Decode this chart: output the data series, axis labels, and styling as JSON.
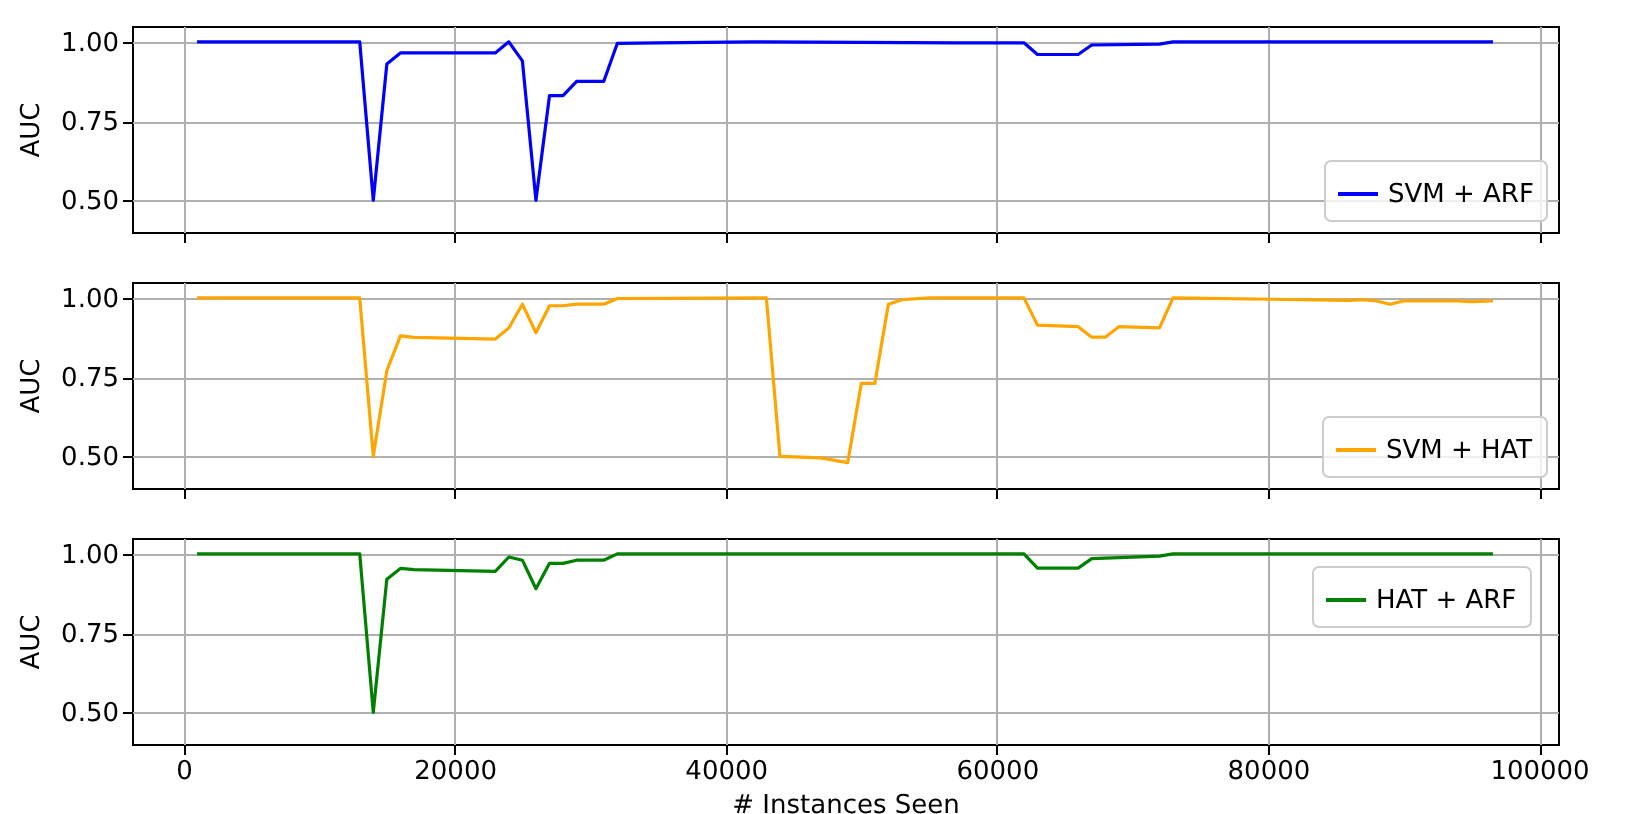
{
  "chart_data": [
    {
      "type": "line",
      "ylabel": "AUC",
      "x": [
        1000,
        13000,
        14000,
        15000,
        16000,
        23000,
        24000,
        25000,
        26000,
        27000,
        28000,
        29000,
        31000,
        32000,
        35000,
        42000,
        57000,
        62000,
        63000,
        66000,
        67000,
        72000,
        73000,
        96600
      ],
      "series": [
        {
          "name": "SVM + ARF",
          "color": "#0000ff",
          "values": [
            1.0,
            1.0,
            0.5,
            0.93,
            0.965,
            0.965,
            1.0,
            0.94,
            0.5,
            0.83,
            0.83,
            0.875,
            0.875,
            0.995,
            0.997,
            1.0,
            0.997,
            0.997,
            0.96,
            0.96,
            0.99,
            0.993,
            1.0,
            1.0
          ]
        }
      ],
      "xlim": [
        -3800,
        101400
      ],
      "ylim": [
        0.4,
        1.05
      ],
      "xticks": [
        0,
        20000,
        40000,
        60000,
        80000,
        100000
      ],
      "yticks": [
        {
          "value": 0.5,
          "label": "0.50"
        },
        {
          "value": 0.75,
          "label": "0.75"
        },
        {
          "value": 1.0,
          "label": "1.00"
        }
      ],
      "grid": true,
      "legend": "bottom right",
      "tick_labels": "y",
      "line_style": "solid"
    },
    {
      "type": "line",
      "ylabel": "AUC",
      "x": [
        1000,
        13000,
        14000,
        15000,
        16000,
        17000,
        23000,
        24000,
        25000,
        26000,
        27000,
        28000,
        29000,
        31000,
        32000,
        43000,
        44000,
        47000,
        49000,
        50000,
        51000,
        52000,
        53000,
        55000,
        62000,
        63000,
        66000,
        67000,
        68000,
        69000,
        72000,
        73000,
        86000,
        87000,
        88000,
        89000,
        90000,
        94000,
        95000,
        96600
      ],
      "series": [
        {
          "name": "SVM + HAT",
          "color": "#ffa500",
          "values": [
            1.0,
            1.0,
            0.5,
            0.77,
            0.88,
            0.875,
            0.87,
            0.905,
            0.98,
            0.89,
            0.975,
            0.975,
            0.98,
            0.98,
            0.998,
            1.0,
            0.5,
            0.495,
            0.48,
            0.73,
            0.73,
            0.98,
            0.994,
            1.0,
            1.0,
            0.914,
            0.909,
            0.876,
            0.876,
            0.909,
            0.905,
            1.0,
            0.992,
            0.994,
            0.99,
            0.98,
            0.99,
            0.99,
            0.988,
            0.99
          ]
        }
      ],
      "xlim": [
        -3800,
        101400
      ],
      "ylim": [
        0.4,
        1.05
      ],
      "xticks": [
        0,
        20000,
        40000,
        60000,
        80000,
        100000
      ],
      "yticks": [
        {
          "value": 0.5,
          "label": "0.50"
        },
        {
          "value": 0.75,
          "label": "0.75"
        },
        {
          "value": 1.0,
          "label": "1.00"
        }
      ],
      "grid": true,
      "legend": "bottom right",
      "tick_labels": "y",
      "line_style": "solid"
    },
    {
      "type": "line",
      "xlabel": "# Instances Seen",
      "ylabel": "AUC",
      "x": [
        1000,
        13000,
        14000,
        15000,
        16000,
        17000,
        23000,
        24000,
        25000,
        26000,
        27000,
        28000,
        29000,
        31000,
        32000,
        62000,
        63000,
        66000,
        67000,
        72000,
        73000,
        96600
      ],
      "series": [
        {
          "name": "HAT + ARF",
          "color": "#008000",
          "values": [
            1.0,
            1.0,
            0.5,
            0.92,
            0.954,
            0.95,
            0.945,
            0.99,
            0.98,
            0.89,
            0.97,
            0.97,
            0.98,
            0.98,
            1.0,
            1.0,
            0.955,
            0.955,
            0.985,
            0.993,
            1.0,
            1.0
          ]
        }
      ],
      "xlim": [
        -3800,
        101400
      ],
      "ylim": [
        0.4,
        1.05
      ],
      "xticks": [
        0,
        20000,
        40000,
        60000,
        80000,
        100000
      ],
      "yticks": [
        {
          "value": 0.5,
          "label": "0.50"
        },
        {
          "value": 0.75,
          "label": "0.75"
        },
        {
          "value": 1.0,
          "label": "1.00"
        }
      ],
      "grid": true,
      "legend": "top right",
      "line_style": "solid"
    }
  ]
}
